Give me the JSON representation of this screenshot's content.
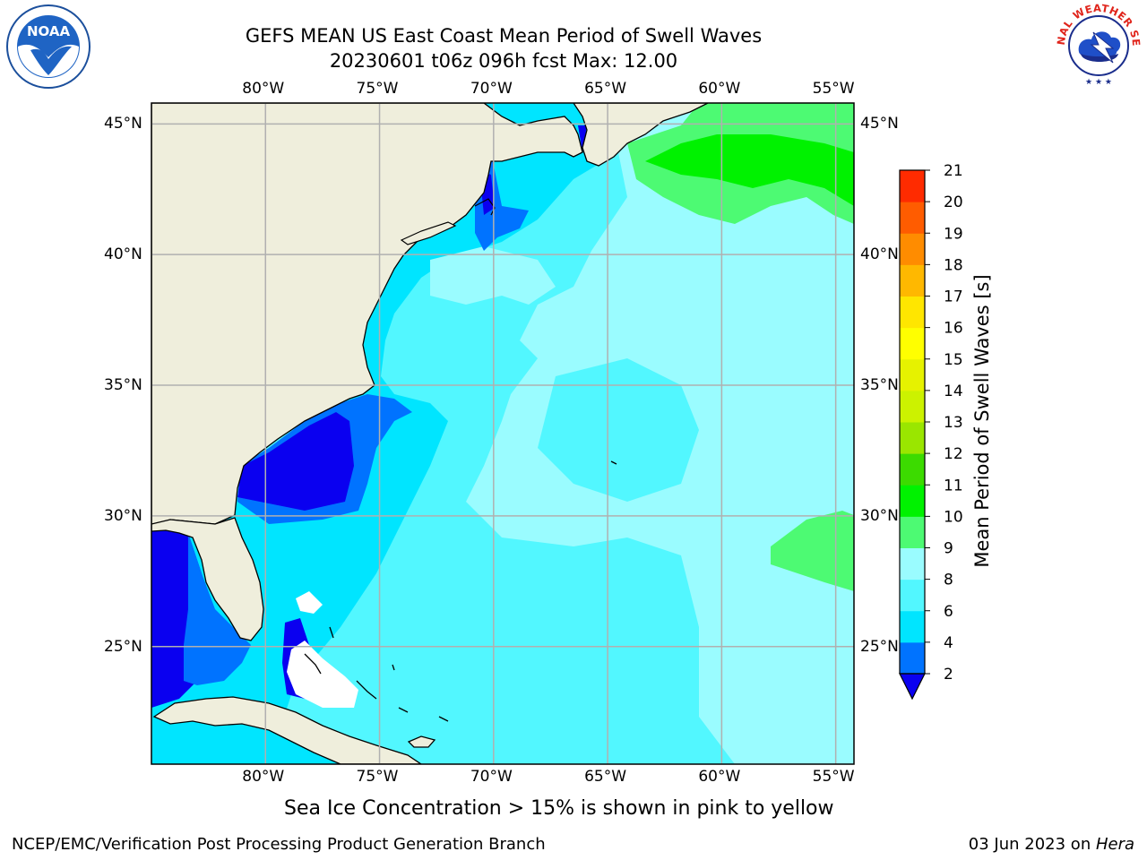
{
  "header": {
    "title_line1": "GEFS MEAN US East Coast Mean Period of Swell Waves",
    "title_line2": "20230601 t06z 096h fcst   Max: 12.00"
  },
  "map": {
    "lon_labels": [
      "80°W",
      "75°W",
      "70°W",
      "65°W",
      "60°W",
      "55°W"
    ],
    "lat_labels": [
      "45°N",
      "40°N",
      "35°N",
      "30°N",
      "25°N"
    ],
    "extent": {
      "lon_min": -85,
      "lon_max": -54.2,
      "lat_min": 20.5,
      "lat_max": 45.8
    },
    "land_color": "#efeedc",
    "grid_color": "#b0b0b0"
  },
  "colorbar": {
    "label": "Mean Period of Swell Waves [s]",
    "ticks": [
      "2",
      "4",
      "6",
      "8",
      "9",
      "10",
      "11",
      "12",
      "13",
      "14",
      "15",
      "16",
      "17",
      "18",
      "19",
      "20",
      "21"
    ],
    "colors": [
      "#0073ff",
      "#00e5ff",
      "#52f7ff",
      "#9afcff",
      "#4dfa73",
      "#00f200",
      "#3cdb00",
      "#9ae600",
      "#ccf200",
      "#e6f200",
      "#ffff00",
      "#ffe600",
      "#ffb800",
      "#ff8c00",
      "#ff5c00",
      "#ff2b00",
      "#ff0000"
    ],
    "under_color": "#0a00f0"
  },
  "footer": {
    "sea_ice_note": "Sea Ice Concentration > 15% is shown in pink to yellow",
    "producer": "NCEP/EMC/Verification Post Processing Product Generation Branch",
    "date": "03 Jun 2023 on ",
    "machine": "Hera"
  },
  "logos": {
    "noaa": "NOAA",
    "nws": "NATIONAL WEATHER SERVICE"
  }
}
